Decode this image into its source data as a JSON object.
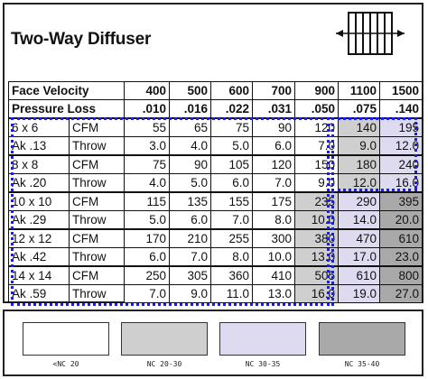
{
  "title": "Two-Way Diffuser",
  "icon": "two-way-diffuser-icon",
  "header": {
    "velocity_label": "Face Velocity",
    "pressure_label": "Pressure Loss",
    "velocities": [
      "400",
      "500",
      "600",
      "700",
      "900",
      "1100",
      "1500"
    ],
    "pressures": [
      ".010",
      ".016",
      ".022",
      ".031",
      ".050",
      ".075",
      ".140"
    ]
  },
  "sizes": [
    {
      "size": "6 x 6",
      "ak": "Ak .13",
      "cfm_label": "CFM",
      "throw_label": "Throw",
      "cfm": [
        "55",
        "65",
        "75",
        "90",
        "120",
        "140",
        "195"
      ],
      "throw": [
        "3.0",
        "4.0",
        "5.0",
        "6.0",
        "7.0",
        "9.0",
        "12.0"
      ]
    },
    {
      "size": "8 x 8",
      "ak": "Ak .20",
      "cfm_label": "CFM",
      "throw_label": "Throw",
      "cfm": [
        "75",
        "90",
        "105",
        "120",
        "150",
        "180",
        "240"
      ],
      "throw": [
        "4.0",
        "5.0",
        "6.0",
        "7.0",
        "9.0",
        "12.0",
        "16.0"
      ]
    },
    {
      "size": "10 x 10",
      "ak": "Ak .29",
      "cfm_label": "CFM",
      "throw_label": "Throw",
      "cfm": [
        "115",
        "135",
        "155",
        "175",
        "235",
        "290",
        "395"
      ],
      "throw": [
        "5.0",
        "6.0",
        "7.0",
        "8.0",
        "10.0",
        "14.0",
        "20.0"
      ]
    },
    {
      "size": "12 x 12",
      "ak": "Ak .42",
      "cfm_label": "CFM",
      "throw_label": "Throw",
      "cfm": [
        "170",
        "210",
        "255",
        "300",
        "380",
        "470",
        "610"
      ],
      "throw": [
        "6.0",
        "7.0",
        "8.0",
        "10.0",
        "13.0",
        "17.0",
        "23.0"
      ]
    },
    {
      "size": "14 x 14",
      "ak": "Ak .59",
      "cfm_label": "CFM",
      "throw_label": "Throw",
      "cfm": [
        "250",
        "305",
        "360",
        "410",
        "505",
        "610",
        "800"
      ],
      "throw": [
        "7.0",
        "9.0",
        "11.0",
        "13.0",
        "16.0",
        "19.0",
        "27.0"
      ]
    }
  ],
  "shading": [
    [
      "nc20",
      "nc20",
      "nc20",
      "nc20",
      "nc20",
      "nc2030",
      "nc3035"
    ],
    [
      "nc20",
      "nc20",
      "nc20",
      "nc20",
      "nc20",
      "nc2030",
      "nc3035"
    ],
    [
      "nc20",
      "nc20",
      "nc20",
      "nc20",
      "nc2030",
      "nc3035",
      "nc3540"
    ],
    [
      "nc20",
      "nc20",
      "nc20",
      "nc20",
      "nc2030",
      "nc3035",
      "nc3540"
    ],
    [
      "nc20",
      "nc20",
      "nc20",
      "nc20",
      "nc2030",
      "nc3035",
      "nc3540"
    ]
  ],
  "legend": [
    {
      "key": "nc20",
      "label": "<NC 20",
      "color": "#ffffff"
    },
    {
      "key": "nc2030",
      "label": "NC 20-30",
      "color": "#cfcfcf"
    },
    {
      "key": "nc3035",
      "label": "NC 30-35",
      "color": "#dedaf0"
    },
    {
      "key": "nc3540",
      "label": "NC 35-40",
      "color": "#a9a9a9"
    }
  ],
  "colors": {
    "highlight_dash": "#1a1aff",
    "border": "#111111"
  }
}
